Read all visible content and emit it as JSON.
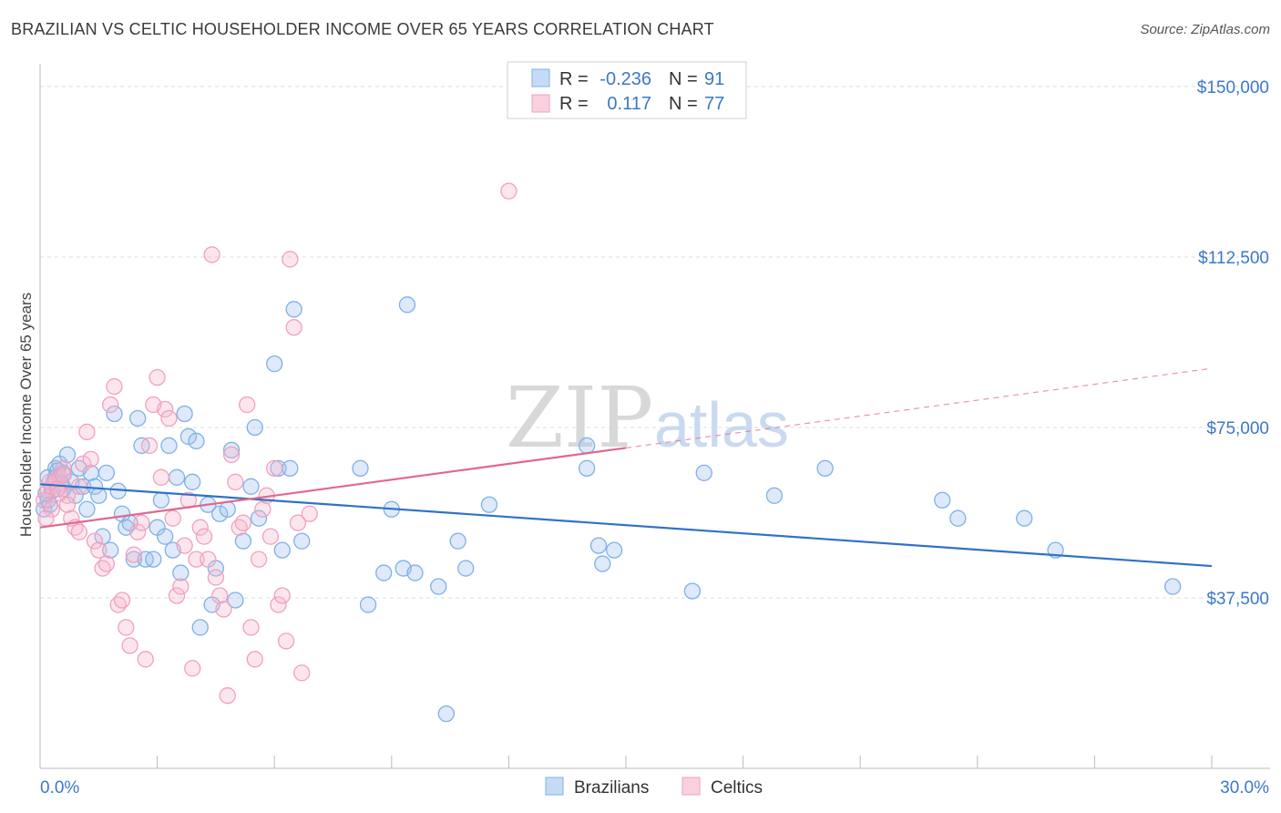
{
  "title": "BRAZILIAN VS CELTIC HOUSEHOLDER INCOME OVER 65 YEARS CORRELATION CHART",
  "source": "Source: ZipAtlas.com",
  "watermark": {
    "zip": "ZIP",
    "atlas": "atlas"
  },
  "legend": {
    "rows": [
      {
        "r_label": "R =",
        "r_value": "-0.236",
        "n_label": "N =",
        "n_value": "91",
        "color": "#7fb0e8"
      },
      {
        "r_label": "R =",
        "r_value": "0.117",
        "n_label": "N =",
        "n_value": "77",
        "color": "#f2a0bc"
      }
    ]
  },
  "bottom_legend": [
    {
      "label": "Brazilians",
      "color": "#7fb0e8"
    },
    {
      "label": "Celtics",
      "color": "#f2a0bc"
    }
  ],
  "chart_data": {
    "type": "scatter",
    "title": "BRAZILIAN VS CELTIC HOUSEHOLDER INCOME OVER 65 YEARS CORRELATION CHART",
    "xlabel": "",
    "ylabel": "Householder Income Over 65 years",
    "xlim": [
      0,
      30
    ],
    "ylim": [
      0,
      155000
    ],
    "x_tick_labels": [
      "0.0%",
      "30.0%"
    ],
    "y_ticks": [
      37500,
      75000,
      112500,
      150000
    ],
    "y_tick_labels": [
      "$37,500",
      "$75,000",
      "$112,500",
      "$150,000"
    ],
    "grid": true,
    "series": [
      {
        "name": "Brazilians",
        "color": "#7fb0e8",
        "line_color": "#2f72c9",
        "trend": {
          "x": [
            0,
            30
          ],
          "y": [
            62500,
            44500
          ]
        },
        "points": [
          [
            0.1,
            57000
          ],
          [
            0.2,
            59000
          ],
          [
            0.3,
            61000
          ],
          [
            0.4,
            66000
          ],
          [
            0.4,
            64000
          ],
          [
            0.5,
            67000
          ],
          [
            0.6,
            65000
          ],
          [
            0.7,
            69000
          ],
          [
            0.8,
            63000
          ],
          [
            0.9,
            60000
          ],
          [
            1.0,
            66000
          ],
          [
            1.1,
            62000
          ],
          [
            1.2,
            57000
          ],
          [
            1.3,
            65000
          ],
          [
            1.4,
            62000
          ],
          [
            1.5,
            60000
          ],
          [
            1.6,
            51000
          ],
          [
            1.7,
            65000
          ],
          [
            1.8,
            48000
          ],
          [
            1.9,
            78000
          ],
          [
            2.0,
            61000
          ],
          [
            2.1,
            56000
          ],
          [
            2.2,
            53000
          ],
          [
            2.3,
            54000
          ],
          [
            2.4,
            46000
          ],
          [
            2.5,
            77000
          ],
          [
            2.6,
            71000
          ],
          [
            2.7,
            46000
          ],
          [
            2.9,
            46000
          ],
          [
            3.0,
            53000
          ],
          [
            3.1,
            59000
          ],
          [
            3.2,
            51000
          ],
          [
            3.3,
            71000
          ],
          [
            3.4,
            48000
          ],
          [
            3.5,
            64000
          ],
          [
            3.6,
            43000
          ],
          [
            3.7,
            78000
          ],
          [
            3.8,
            73000
          ],
          [
            3.9,
            63000
          ],
          [
            4.0,
            72000
          ],
          [
            4.1,
            31000
          ],
          [
            4.3,
            58000
          ],
          [
            4.4,
            36000
          ],
          [
            4.5,
            44000
          ],
          [
            4.6,
            56000
          ],
          [
            4.8,
            57000
          ],
          [
            4.9,
            70000
          ],
          [
            5.0,
            37000
          ],
          [
            5.2,
            50000
          ],
          [
            5.4,
            62000
          ],
          [
            5.5,
            75000
          ],
          [
            5.6,
            55000
          ],
          [
            6.0,
            89000
          ],
          [
            6.1,
            66000
          ],
          [
            6.2,
            48000
          ],
          [
            6.4,
            66000
          ],
          [
            6.5,
            101000
          ],
          [
            6.7,
            50000
          ],
          [
            8.2,
            66000
          ],
          [
            8.4,
            36000
          ],
          [
            8.8,
            43000
          ],
          [
            9.0,
            57000
          ],
          [
            9.3,
            44000
          ],
          [
            9.4,
            102000
          ],
          [
            9.6,
            43000
          ],
          [
            10.2,
            40000
          ],
          [
            10.4,
            12000
          ],
          [
            10.7,
            50000
          ],
          [
            10.9,
            44000
          ],
          [
            11.5,
            58000
          ],
          [
            14.0,
            71000
          ],
          [
            14.0,
            66000
          ],
          [
            14.4,
            45000
          ],
          [
            14.3,
            49000
          ],
          [
            14.7,
            48000
          ],
          [
            16.7,
            39000
          ],
          [
            17.0,
            65000
          ],
          [
            18.8,
            60000
          ],
          [
            20.1,
            66000
          ],
          [
            23.1,
            59000
          ],
          [
            23.5,
            55000
          ],
          [
            25.2,
            55000
          ],
          [
            29.0,
            40000
          ],
          [
            26.0,
            48000
          ],
          [
            0.2,
            64000
          ],
          [
            0.35,
            63000
          ],
          [
            0.45,
            65500
          ],
          [
            0.55,
            62500
          ],
          [
            0.25,
            58000
          ],
          [
            0.15,
            60500
          ],
          [
            0.6,
            61500
          ]
        ]
      },
      {
        "name": "Celtics",
        "color": "#f2a0bc",
        "line_color": "#e0678f",
        "trend": {
          "x": [
            0,
            15
          ],
          "y": [
            53000,
            70500
          ]
        },
        "trend_dashed": {
          "x": [
            15,
            30
          ],
          "y": [
            70500,
            88000
          ]
        },
        "points": [
          [
            0.1,
            59000
          ],
          [
            0.2,
            61000
          ],
          [
            0.3,
            62000
          ],
          [
            0.4,
            63000
          ],
          [
            0.5,
            64000
          ],
          [
            0.6,
            66000
          ],
          [
            0.7,
            60000
          ],
          [
            0.8,
            55000
          ],
          [
            0.9,
            53000
          ],
          [
            1.0,
            62000
          ],
          [
            1.1,
            67000
          ],
          [
            1.2,
            74000
          ],
          [
            1.3,
            68000
          ],
          [
            1.4,
            50000
          ],
          [
            1.5,
            48000
          ],
          [
            1.6,
            44000
          ],
          [
            1.7,
            45000
          ],
          [
            1.8,
            80000
          ],
          [
            1.9,
            84000
          ],
          [
            2.0,
            36000
          ],
          [
            2.1,
            37000
          ],
          [
            2.2,
            31000
          ],
          [
            2.3,
            27000
          ],
          [
            2.4,
            47000
          ],
          [
            2.5,
            52000
          ],
          [
            2.6,
            54000
          ],
          [
            2.7,
            24000
          ],
          [
            2.8,
            71000
          ],
          [
            2.9,
            80000
          ],
          [
            3.0,
            86000
          ],
          [
            3.1,
            64000
          ],
          [
            3.2,
            79000
          ],
          [
            3.3,
            77000
          ],
          [
            3.4,
            55000
          ],
          [
            3.5,
            38000
          ],
          [
            3.6,
            40000
          ],
          [
            3.7,
            49000
          ],
          [
            3.8,
            59000
          ],
          [
            3.9,
            22000
          ],
          [
            4.0,
            46000
          ],
          [
            4.1,
            53000
          ],
          [
            4.2,
            51000
          ],
          [
            4.3,
            46000
          ],
          [
            4.4,
            113000
          ],
          [
            4.5,
            42000
          ],
          [
            4.6,
            38000
          ],
          [
            4.7,
            35000
          ],
          [
            4.8,
            16000
          ],
          [
            4.9,
            69000
          ],
          [
            5.0,
            63000
          ],
          [
            5.1,
            53000
          ],
          [
            5.2,
            54000
          ],
          [
            5.3,
            80000
          ],
          [
            5.4,
            31000
          ],
          [
            5.5,
            24000
          ],
          [
            5.6,
            46000
          ],
          [
            5.7,
            57000
          ],
          [
            5.8,
            60000
          ],
          [
            5.9,
            51000
          ],
          [
            6.0,
            66000
          ],
          [
            6.1,
            36000
          ],
          [
            6.2,
            38000
          ],
          [
            6.3,
            28000
          ],
          [
            6.4,
            112000
          ],
          [
            6.5,
            97000
          ],
          [
            6.6,
            54000
          ],
          [
            6.7,
            21000
          ],
          [
            6.9,
            56000
          ],
          [
            12.0,
            127000
          ],
          [
            0.3,
            57000
          ],
          [
            0.5,
            60500
          ],
          [
            0.15,
            55000
          ],
          [
            0.7,
            58000
          ],
          [
            1.0,
            52000
          ],
          [
            0.25,
            63000
          ],
          [
            0.45,
            61500
          ],
          [
            0.6,
            64500
          ]
        ]
      }
    ]
  }
}
